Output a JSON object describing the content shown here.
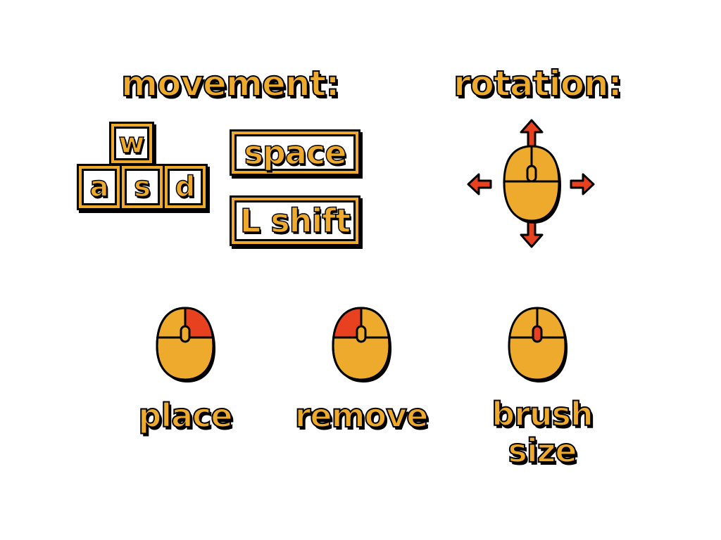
{
  "colors": {
    "key_fill": "#eeaa2c",
    "highlight": "#e8411f",
    "outline": "#000000",
    "background": "#ffffff"
  },
  "movement": {
    "title": "movement:",
    "keys": {
      "w": "w",
      "a": "a",
      "s": "s",
      "d": "d",
      "up": "space",
      "down": "L shift"
    }
  },
  "rotation": {
    "title": "rotation:",
    "icon": "mouse-move-icon",
    "arrows": [
      "up",
      "down",
      "left",
      "right"
    ]
  },
  "mouse_actions": [
    {
      "label": "place",
      "icon": "mouse-right-click-icon",
      "highlight": "right-button"
    },
    {
      "label": "remove",
      "icon": "mouse-left-click-icon",
      "highlight": "left-button"
    },
    {
      "label_line1": "brush",
      "label_line2": "size",
      "icon": "mouse-scroll-wheel-icon",
      "highlight": "scroll-wheel"
    }
  ]
}
